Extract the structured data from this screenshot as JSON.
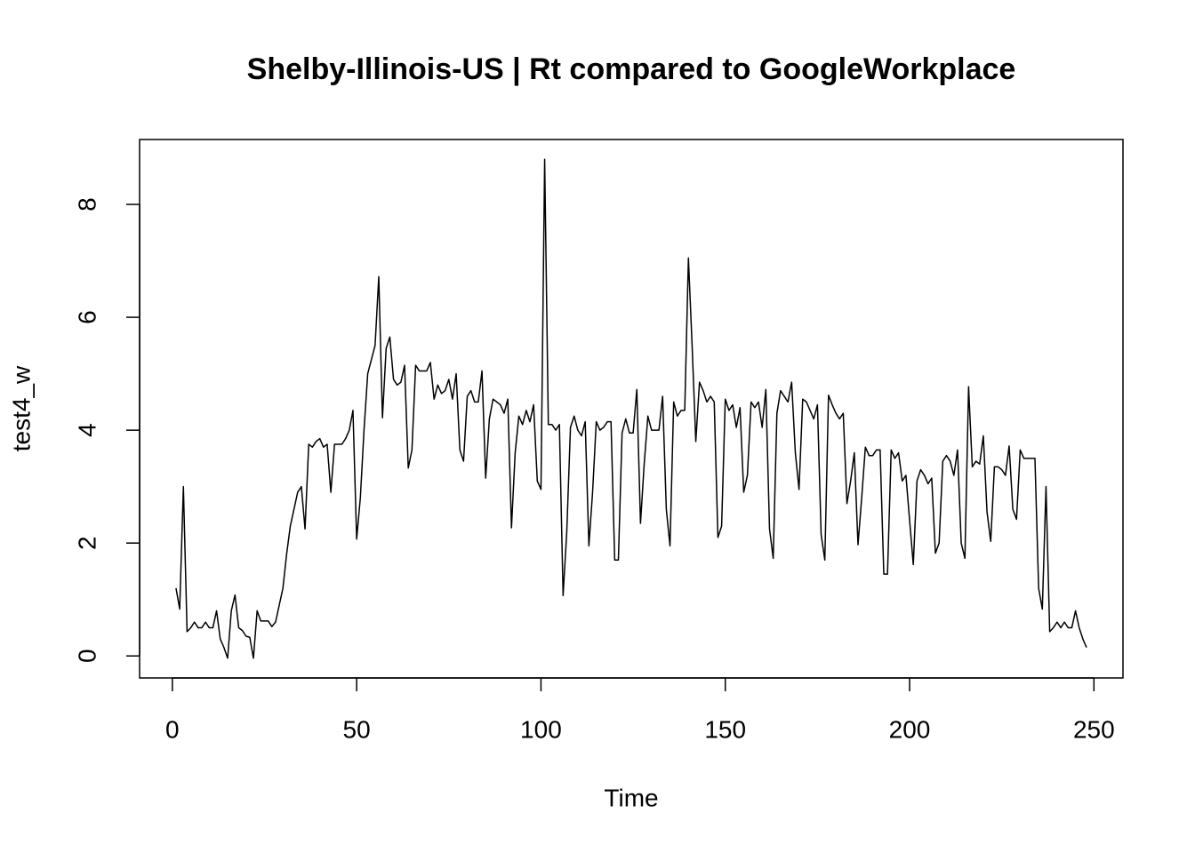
{
  "chart_data": {
    "type": "line",
    "title": "Shelby-Illinois-US | Rt compared to GoogleWorkplace",
    "x_label": "Time",
    "y_label": "test4_w",
    "x": [
      1,
      2,
      3,
      4,
      5,
      6,
      7,
      8,
      9,
      10,
      11,
      12,
      13,
      14,
      15,
      16,
      17,
      18,
      19,
      20,
      21,
      22,
      23,
      24,
      25,
      26,
      27,
      28,
      29,
      30,
      31,
      32,
      33,
      34,
      35,
      36,
      37,
      38,
      39,
      40,
      41,
      42,
      43,
      44,
      45,
      46,
      47,
      48,
      49,
      50,
      51,
      52,
      53,
      54,
      55,
      56,
      57,
      58,
      59,
      60,
      61,
      62,
      63,
      64,
      65,
      66,
      67,
      68,
      69,
      70,
      71,
      72,
      73,
      74,
      75,
      76,
      77,
      78,
      79,
      80,
      81,
      82,
      83,
      84,
      85,
      86,
      87,
      88,
      89,
      90,
      91,
      92,
      93,
      94,
      95,
      96,
      97,
      98,
      99,
      100,
      101,
      102,
      103,
      104,
      105,
      106,
      107,
      108,
      109,
      110,
      111,
      112,
      113,
      114,
      115,
      116,
      117,
      118,
      119,
      120,
      121,
      122,
      123,
      124,
      125,
      126,
      127,
      128,
      129,
      130,
      131,
      132,
      133,
      134,
      135,
      136,
      137,
      138,
      139,
      140,
      141,
      142,
      143,
      144,
      145,
      146,
      147,
      148,
      149,
      150,
      151,
      152,
      153,
      154,
      155,
      156,
      157,
      158,
      159,
      160,
      161,
      162,
      163,
      164,
      165,
      166,
      167,
      168,
      169,
      170,
      171,
      172,
      173,
      174,
      175,
      176,
      177,
      178,
      179,
      180,
      181,
      182,
      183,
      184,
      185,
      186,
      187,
      188,
      189,
      190,
      191,
      192,
      193,
      194,
      195,
      196,
      197,
      198,
      199,
      200,
      201,
      202,
      203,
      204,
      205,
      206,
      207,
      208,
      209,
      210,
      211,
      212,
      213,
      214,
      215,
      216,
      217,
      218,
      219,
      220,
      221,
      222,
      223,
      224,
      225,
      226,
      227,
      228,
      229,
      230,
      231,
      232,
      233,
      234,
      235,
      236,
      237,
      238,
      239,
      240,
      241,
      242,
      243,
      244,
      245,
      246,
      247,
      248
    ],
    "series": [
      {
        "name": "test4_w",
        "color": "#000000",
        "values": [
          1.2,
          0.83,
          3.0,
          0.43,
          0.5,
          0.6,
          0.5,
          0.5,
          0.6,
          0.5,
          0.5,
          0.8,
          0.3,
          0.15,
          -0.04,
          0.8,
          1.08,
          0.5,
          0.45,
          0.35,
          0.33,
          -0.04,
          0.8,
          0.62,
          0.62,
          0.62,
          0.52,
          0.6,
          0.9,
          1.2,
          1.8,
          2.3,
          2.6,
          2.9,
          3.0,
          2.25,
          3.75,
          3.7,
          3.8,
          3.85,
          3.7,
          3.75,
          2.9,
          3.75,
          3.75,
          3.75,
          3.85,
          4.0,
          4.35,
          2.07,
          2.8,
          4.0,
          5.0,
          5.25,
          5.5,
          6.72,
          4.22,
          5.45,
          5.65,
          4.9,
          4.8,
          4.85,
          5.15,
          3.33,
          3.65,
          5.15,
          5.05,
          5.05,
          5.05,
          5.2,
          4.55,
          4.8,
          4.65,
          4.7,
          4.9,
          4.55,
          5.0,
          3.65,
          3.45,
          4.6,
          4.7,
          4.5,
          4.5,
          5.05,
          3.15,
          4.2,
          4.55,
          4.5,
          4.45,
          4.3,
          4.55,
          2.27,
          3.6,
          4.25,
          4.1,
          4.35,
          4.15,
          4.45,
          3.1,
          2.95,
          8.8,
          4.1,
          4.1,
          4.0,
          4.1,
          1.07,
          2.2,
          4.05,
          4.25,
          4.0,
          3.9,
          4.15,
          1.95,
          2.9,
          4.15,
          4.0,
          4.05,
          4.15,
          4.15,
          1.7,
          1.7,
          3.95,
          4.2,
          3.95,
          3.95,
          4.72,
          2.35,
          3.4,
          4.25,
          4.0,
          4.0,
          4.0,
          4.6,
          2.6,
          1.95,
          4.5,
          4.25,
          4.35,
          4.35,
          7.05,
          5.5,
          3.8,
          4.85,
          4.7,
          4.5,
          4.6,
          4.5,
          2.1,
          2.3,
          4.55,
          4.35,
          4.45,
          4.05,
          4.4,
          2.9,
          3.2,
          4.5,
          4.4,
          4.5,
          4.05,
          4.72,
          2.25,
          1.73,
          4.3,
          4.7,
          4.6,
          4.5,
          4.85,
          3.6,
          2.95,
          4.55,
          4.5,
          4.35,
          4.2,
          4.45,
          2.15,
          1.7,
          4.62,
          4.45,
          4.3,
          4.2,
          4.3,
          2.7,
          3.1,
          3.6,
          1.97,
          2.8,
          3.7,
          3.55,
          3.55,
          3.65,
          3.65,
          1.45,
          1.45,
          3.65,
          3.5,
          3.6,
          3.1,
          3.2,
          2.4,
          1.62,
          3.1,
          3.3,
          3.2,
          3.05,
          3.15,
          1.82,
          2.0,
          3.45,
          3.55,
          3.45,
          3.2,
          3.65,
          2.0,
          1.73,
          4.77,
          3.35,
          3.45,
          3.4,
          3.9,
          2.55,
          2.03,
          3.35,
          3.35,
          3.3,
          3.2,
          3.72,
          2.6,
          2.42,
          3.65,
          3.5,
          3.5,
          3.5,
          3.5,
          1.2,
          0.83,
          3.0,
          0.43,
          0.5,
          0.6,
          0.5,
          0.6,
          0.5,
          0.5,
          0.8,
          0.5,
          0.3,
          0.15
        ]
      }
    ],
    "xlim": [
      -8.88,
      257.88
    ],
    "ylim": [
      -0.39,
      9.15
    ],
    "xticks": [
      0,
      50,
      100,
      150,
      200,
      250
    ],
    "yticks": [
      0,
      2,
      4,
      6,
      8
    ]
  }
}
